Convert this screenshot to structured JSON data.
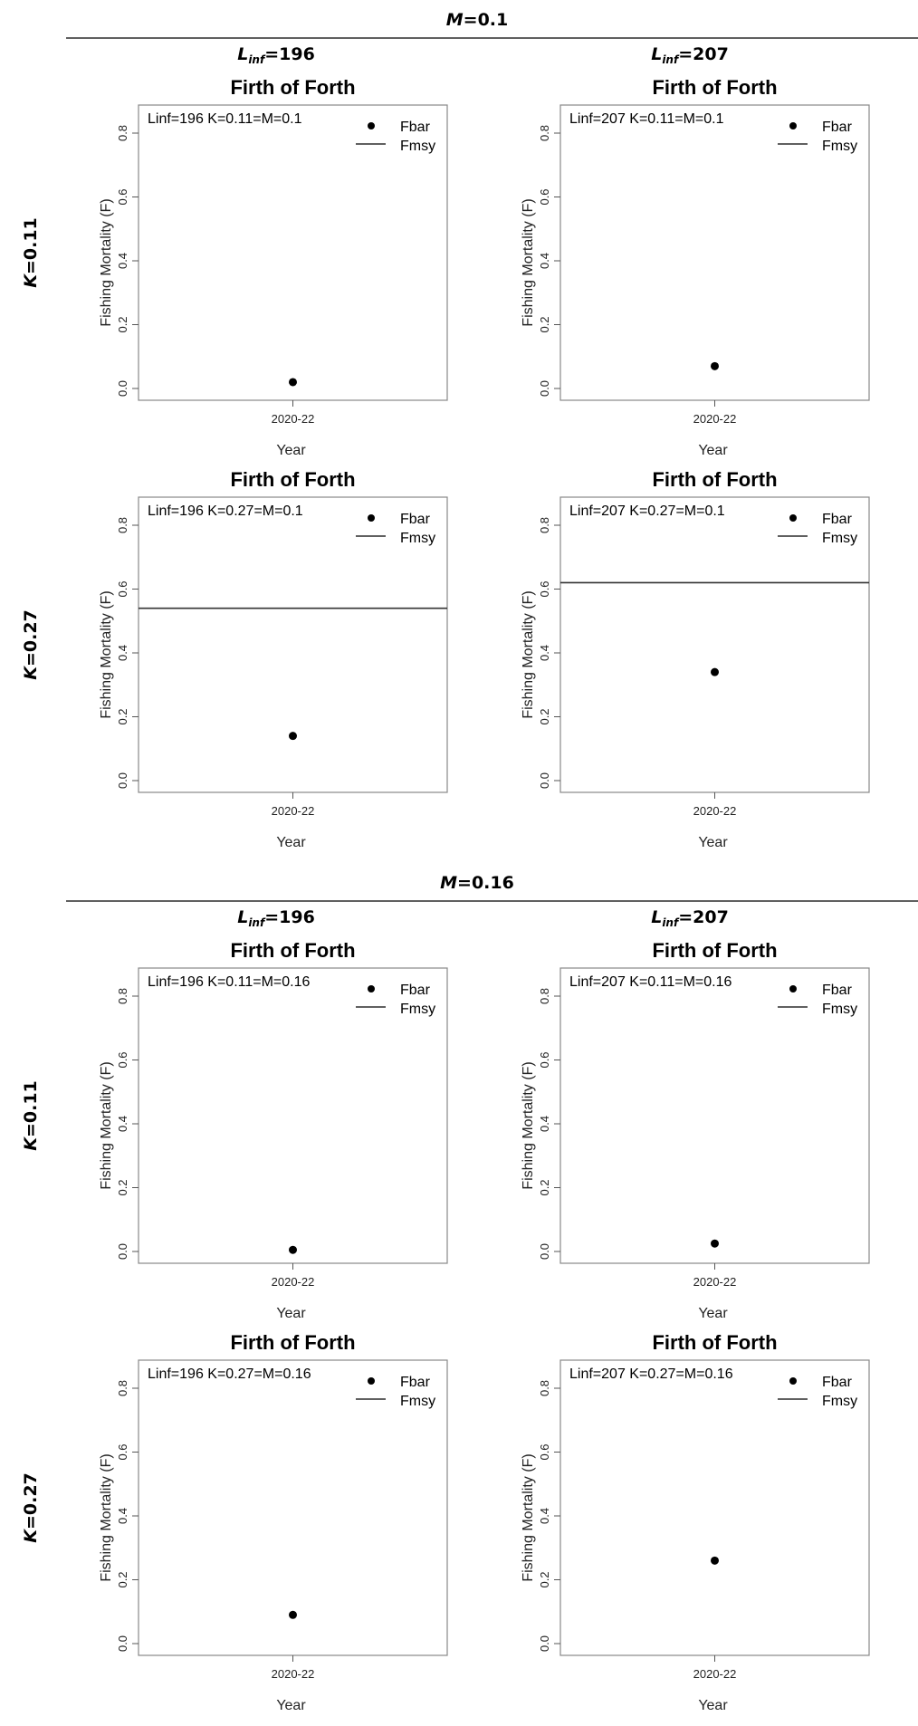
{
  "sections": [
    {
      "m_label": "M",
      "m_value": "=0.1"
    },
    {
      "m_label": "M",
      "m_value": "=0.16"
    }
  ],
  "columns": [
    {
      "l": "L",
      "sub": "inf",
      "value": "=196"
    },
    {
      "l": "L",
      "sub": "inf",
      "value": "=207"
    }
  ],
  "rows": [
    {
      "k": "K",
      "value": "=0.11"
    },
    {
      "k": "K",
      "value": "=0.27"
    }
  ],
  "chart_data": [
    {
      "type": "scatter",
      "title": "Firth of Forth",
      "annotation": "Linf=196 K=0.11=M=0.1",
      "xlabel": "Year",
      "ylabel": "Fishing Mortality (F)",
      "categories": [
        "2020-22"
      ],
      "yticks": [
        "0.0",
        "0.2",
        "0.4",
        "0.6",
        "0.8"
      ],
      "ylim": [
        0,
        0.88
      ],
      "legend": [
        "Fbar",
        "Fmsy"
      ],
      "legend_position": "top-right",
      "series": [
        {
          "name": "Fbar",
          "values": [
            0.02
          ]
        }
      ],
      "fmsy": null
    },
    {
      "type": "scatter",
      "title": "Firth of Forth",
      "annotation": "Linf=207 K=0.11=M=0.1",
      "xlabel": "Year",
      "ylabel": "Fishing Mortality (F)",
      "categories": [
        "2020-22"
      ],
      "yticks": [
        "0.0",
        "0.2",
        "0.4",
        "0.6",
        "0.8"
      ],
      "ylim": [
        0,
        0.88
      ],
      "legend": [
        "Fbar",
        "Fmsy"
      ],
      "legend_position": "top-right",
      "series": [
        {
          "name": "Fbar",
          "values": [
            0.07
          ]
        }
      ],
      "fmsy": null
    },
    {
      "type": "scatter",
      "title": "Firth of Forth",
      "annotation": "Linf=196 K=0.27=M=0.1",
      "xlabel": "Year",
      "ylabel": "Fishing Mortality (F)",
      "categories": [
        "2020-22"
      ],
      "yticks": [
        "0.0",
        "0.2",
        "0.4",
        "0.6",
        "0.8"
      ],
      "ylim": [
        0,
        0.88
      ],
      "legend": [
        "Fbar",
        "Fmsy"
      ],
      "legend_position": "top-right",
      "series": [
        {
          "name": "Fbar",
          "values": [
            0.14
          ]
        }
      ],
      "fmsy": 0.54
    },
    {
      "type": "scatter",
      "title": "Firth of Forth",
      "annotation": "Linf=207 K=0.27=M=0.1",
      "xlabel": "Year",
      "ylabel": "Fishing Mortality (F)",
      "categories": [
        "2020-22"
      ],
      "yticks": [
        "0.0",
        "0.2",
        "0.4",
        "0.6",
        "0.8"
      ],
      "ylim": [
        0,
        0.88
      ],
      "legend": [
        "Fbar",
        "Fmsy"
      ],
      "legend_position": "top-right",
      "series": [
        {
          "name": "Fbar",
          "values": [
            0.34
          ]
        }
      ],
      "fmsy": 0.62
    },
    {
      "type": "scatter",
      "title": "Firth of Forth",
      "annotation": "Linf=196 K=0.11=M=0.16",
      "xlabel": "Year",
      "ylabel": "Fishing Mortality (F)",
      "categories": [
        "2020-22"
      ],
      "yticks": [
        "0.0",
        "0.2",
        "0.4",
        "0.6",
        "0.8"
      ],
      "ylim": [
        0,
        0.88
      ],
      "legend": [
        "Fbar",
        "Fmsy"
      ],
      "legend_position": "top-right",
      "series": [
        {
          "name": "Fbar",
          "values": [
            0.005
          ]
        }
      ],
      "fmsy": null
    },
    {
      "type": "scatter",
      "title": "Firth of Forth",
      "annotation": "Linf=207 K=0.11=M=0.16",
      "xlabel": "Year",
      "ylabel": "Fishing Mortality (F)",
      "categories": [
        "2020-22"
      ],
      "yticks": [
        "0.0",
        "0.2",
        "0.4",
        "0.6",
        "0.8"
      ],
      "ylim": [
        0,
        0.88
      ],
      "legend": [
        "Fbar",
        "Fmsy"
      ],
      "legend_position": "top-right",
      "series": [
        {
          "name": "Fbar",
          "values": [
            0.025
          ]
        }
      ],
      "fmsy": null
    },
    {
      "type": "scatter",
      "title": "Firth of Forth",
      "annotation": "Linf=196 K=0.27=M=0.16",
      "xlabel": "Year",
      "ylabel": "Fishing Mortality (F)",
      "categories": [
        "2020-22"
      ],
      "yticks": [
        "0.0",
        "0.2",
        "0.4",
        "0.6",
        "0.8"
      ],
      "ylim": [
        0,
        0.88
      ],
      "legend": [
        "Fbar",
        "Fmsy"
      ],
      "legend_position": "top-right",
      "series": [
        {
          "name": "Fbar",
          "values": [
            0.09
          ]
        }
      ],
      "fmsy": null
    },
    {
      "type": "scatter",
      "title": "Firth of Forth",
      "annotation": "Linf=207 K=0.27=M=0.16",
      "xlabel": "Year",
      "ylabel": "Fishing Mortality (F)",
      "categories": [
        "2020-22"
      ],
      "yticks": [
        "0.0",
        "0.2",
        "0.4",
        "0.6",
        "0.8"
      ],
      "ylim": [
        0,
        0.88
      ],
      "legend": [
        "Fbar",
        "Fmsy"
      ],
      "legend_position": "top-right",
      "series": [
        {
          "name": "Fbar",
          "values": [
            0.26
          ]
        }
      ],
      "fmsy": null
    }
  ]
}
